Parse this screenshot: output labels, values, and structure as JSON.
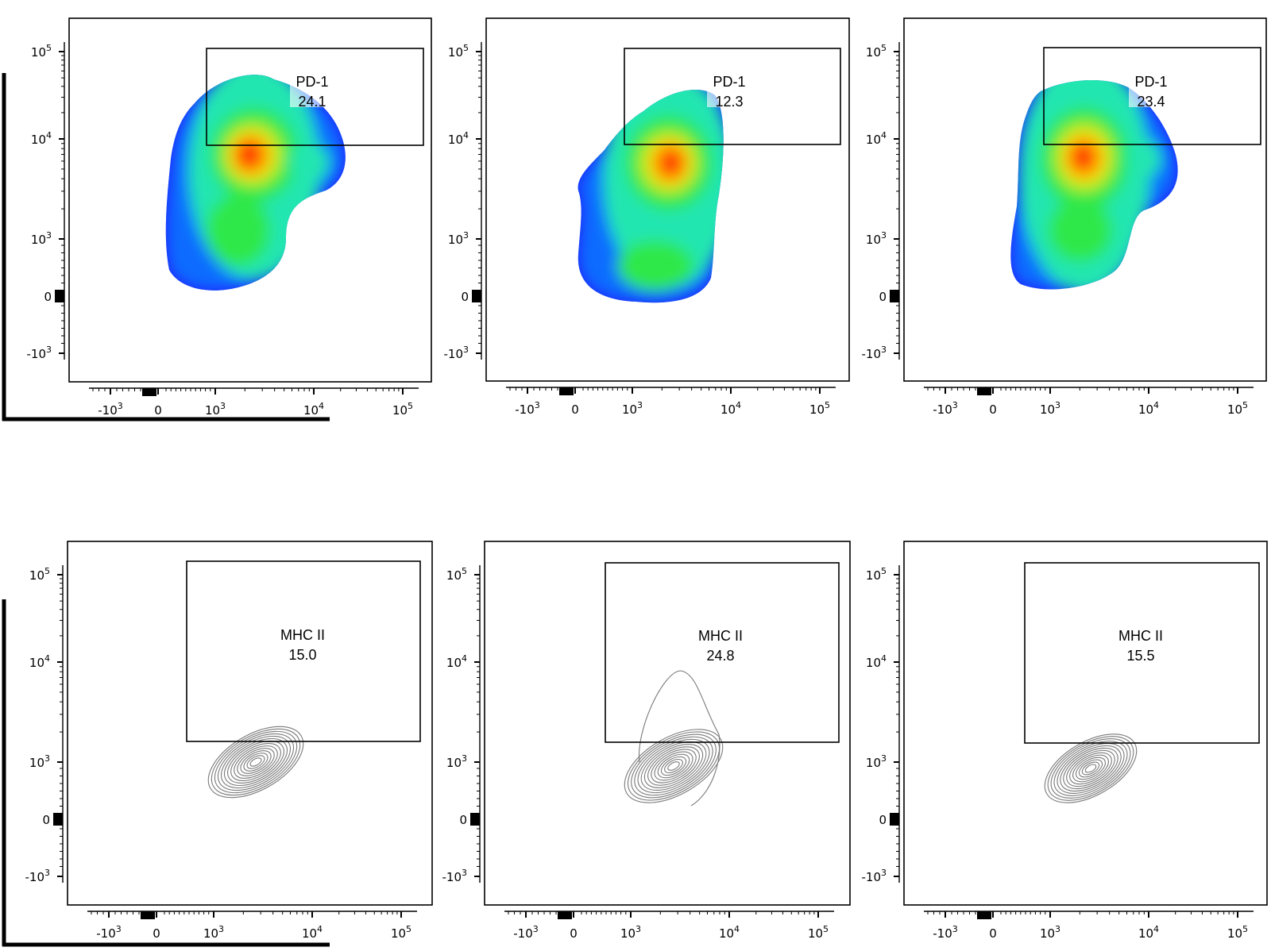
{
  "chart_data": [
    {
      "type": "density",
      "style": "pseudocolor",
      "x_ticks": [
        "-10^3",
        "0",
        "10^3",
        "10^4",
        "10^5"
      ],
      "y_ticks": [
        "10^5",
        "10^4",
        "10^3",
        "0",
        "-10^3"
      ],
      "gate": {
        "name": "PD-1",
        "value": "24.1",
        "x_range": [
          "10^3",
          "10^5"
        ],
        "y_range": [
          "10^4",
          "10^5"
        ]
      }
    },
    {
      "type": "density",
      "style": "pseudocolor",
      "x_ticks": [
        "-10^3",
        "0",
        "10^3",
        "10^4",
        "10^5"
      ],
      "y_ticks": [
        "10^5",
        "10^4",
        "10^3",
        "0",
        "-10^3"
      ],
      "gate": {
        "name": "PD-1",
        "value": "12.3",
        "x_range": [
          "10^3",
          "10^5"
        ],
        "y_range": [
          "10^4",
          "10^5"
        ]
      }
    },
    {
      "type": "density",
      "style": "pseudocolor",
      "x_ticks": [
        "-10^3",
        "0",
        "10^3",
        "10^4",
        "10^5"
      ],
      "y_ticks": [
        "10^5",
        "10^4",
        "10^3",
        "0",
        "-10^3"
      ],
      "gate": {
        "name": "PD-1",
        "value": "23.4",
        "x_range": [
          "10^3",
          "10^5"
        ],
        "y_range": [
          "10^4",
          "10^5"
        ]
      }
    },
    {
      "type": "contour",
      "style": "contour",
      "x_ticks": [
        "-10^3",
        "0",
        "10^3",
        "10^4",
        "10^5"
      ],
      "y_ticks": [
        "10^5",
        "10^4",
        "10^3",
        "0",
        "-10^3"
      ],
      "gate": {
        "name": "MHC II",
        "value": "15.0",
        "x_range": [
          "10^3",
          "10^5"
        ],
        "y_range": [
          "10^3",
          "10^5"
        ]
      }
    },
    {
      "type": "contour",
      "style": "contour",
      "x_ticks": [
        "-10^3",
        "0",
        "10^3",
        "10^4",
        "10^5"
      ],
      "y_ticks": [
        "10^5",
        "10^4",
        "10^3",
        "0",
        "-10^3"
      ],
      "gate": {
        "name": "MHC II",
        "value": "24.8",
        "x_range": [
          "10^3",
          "10^5"
        ],
        "y_range": [
          "10^3",
          "10^5"
        ]
      }
    },
    {
      "type": "contour",
      "style": "contour",
      "x_ticks": [
        "-10^3",
        "0",
        "10^3",
        "10^4",
        "10^5"
      ],
      "y_ticks": [
        "10^5",
        "10^4",
        "10^3",
        "0",
        "-10^3"
      ],
      "gate": {
        "name": "MHC II",
        "value": "15.5",
        "x_range": [
          "10^3",
          "10^5"
        ],
        "y_range": [
          "10^3",
          "10^5"
        ]
      }
    }
  ],
  "colors": {
    "density_scale": [
      "#1a1aff",
      "#0a6cff",
      "#00c8ff",
      "#21e6b0",
      "#2ee84a",
      "#b8ee1e",
      "#ffd000",
      "#ff7a00",
      "#ff1400"
    ],
    "contour": "#7a7a7a",
    "axis": "#000000"
  }
}
